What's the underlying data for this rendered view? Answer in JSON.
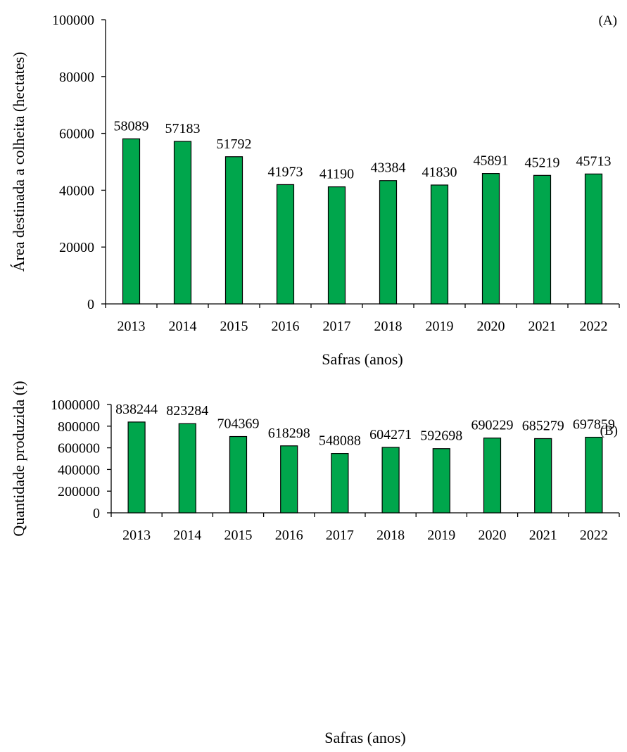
{
  "bar_color": "#00A64C",
  "bar_stroke": "#000000",
  "chart_data": [
    {
      "type": "bar",
      "panel_label": "(A)",
      "xlabel": "Safras (anos)",
      "ylabel": "Área destinada a colheita (hectates)",
      "categories": [
        "2013",
        "2014",
        "2015",
        "2016",
        "2017",
        "2018",
        "2019",
        "2020",
        "2021",
        "2022"
      ],
      "values": [
        58089,
        57183,
        51792,
        41973,
        41190,
        43384,
        41830,
        45891,
        45219,
        45713
      ],
      "value_labels": [
        "58089",
        "57183",
        "51792",
        "41973",
        "41190",
        "43384",
        "41830",
        "45891",
        "45219",
        "45713"
      ],
      "ylim": [
        0,
        100000
      ],
      "yticks": [
        0,
        20000,
        40000,
        60000,
        80000,
        100000
      ],
      "ytick_labels": [
        "0",
        "20000",
        "40000",
        "60000",
        "80000",
        "100000"
      ],
      "grid": false
    },
    {
      "type": "bar",
      "panel_label": "(B)",
      "xlabel": "Safras (anos)",
      "ylabel": "Quantidade produzida (t)",
      "categories": [
        "2013",
        "2014",
        "2015",
        "2016",
        "2017",
        "2018",
        "2019",
        "2020",
        "2021",
        "2022"
      ],
      "values": [
        838244,
        823284,
        704369,
        618298,
        548088,
        604271,
        592698,
        690229,
        685279,
        697859
      ],
      "value_labels": [
        "838244",
        "823284",
        "704369",
        "618298",
        "548088",
        "604271",
        "592698",
        "690229",
        "685279",
        "697859"
      ],
      "ylim": [
        0,
        1000000
      ],
      "yticks": [
        0,
        200000,
        400000,
        600000,
        800000,
        1000000
      ],
      "ytick_labels": [
        "0",
        "200000",
        "400000",
        "600000",
        "800000",
        "1000000"
      ],
      "grid": false
    }
  ]
}
